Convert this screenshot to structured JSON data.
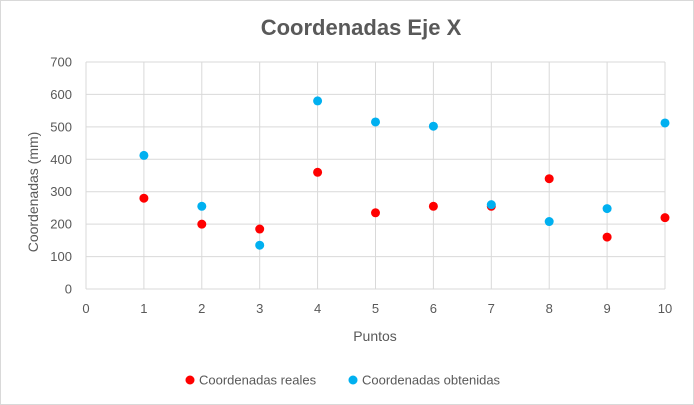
{
  "chart_data": {
    "type": "scatter",
    "title": "Coordenadas Eje X",
    "xlabel": "Puntos",
    "ylabel": "Coordenadas (mm)",
    "xlim": [
      0,
      10
    ],
    "ylim": [
      0,
      700
    ],
    "xticks": [
      0,
      1,
      2,
      3,
      4,
      5,
      6,
      7,
      8,
      9,
      10
    ],
    "yticks": [
      0,
      100,
      200,
      300,
      400,
      500,
      600,
      700
    ],
    "grid": "both",
    "legend_position": "bottom",
    "series": [
      {
        "name": "Coordenadas reales",
        "color": "#ff0000",
        "x": [
          1,
          2,
          3,
          4,
          5,
          6,
          7,
          8,
          9,
          10
        ],
        "y": [
          280,
          200,
          185,
          360,
          235,
          255,
          255,
          340,
          160,
          220
        ]
      },
      {
        "name": "Coordenadas obtenidas",
        "color": "#00b0f0",
        "x": [
          1,
          2,
          3,
          4,
          5,
          6,
          7,
          8,
          9,
          10
        ],
        "y": [
          412,
          255,
          135,
          580,
          515,
          502,
          260,
          208,
          248,
          512
        ]
      }
    ]
  }
}
